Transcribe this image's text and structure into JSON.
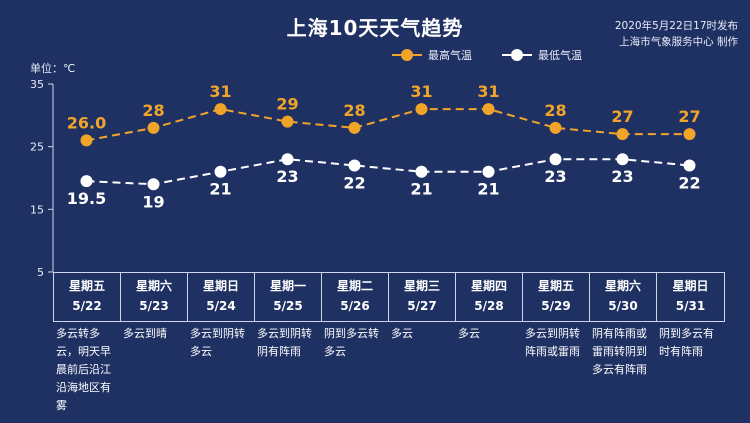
{
  "header": {
    "title": "上海10天天气趋势",
    "publish_time": "2020年5月22日17时发布",
    "producer": "上海市气象服务中心 制作"
  },
  "colors": {
    "background": "#1f3063",
    "high_series": "#f0a52a",
    "low_series": "#ffffff",
    "grid": "#cfd6ea"
  },
  "chart_data": {
    "type": "line",
    "unit_label": "单位：℃",
    "ylim": [
      5,
      35
    ],
    "yticks": [
      5,
      15,
      25,
      35
    ],
    "legend_position": "top-right",
    "categories": [
      "5/22",
      "5/23",
      "5/24",
      "5/25",
      "5/26",
      "5/27",
      "5/28",
      "5/29",
      "5/30",
      "5/31"
    ],
    "series": [
      {
        "name": "最高气温",
        "values": [
          26.0,
          28,
          31,
          29,
          28,
          31,
          31,
          28,
          27,
          27
        ],
        "labels": [
          "26.0",
          "28",
          "31",
          "29",
          "28",
          "31",
          "31",
          "28",
          "27",
          "27"
        ]
      },
      {
        "name": "最低气温",
        "values": [
          19.5,
          19,
          21,
          23,
          22,
          21,
          21,
          23,
          23,
          22
        ],
        "labels": [
          "19.5",
          "19",
          "21",
          "23",
          "22",
          "21",
          "21",
          "23",
          "23",
          "22"
        ]
      }
    ]
  },
  "days": [
    {
      "weekday": "星期五",
      "date": "5/22",
      "desc": "多云转多云，明天早晨前后沿江沿海地区有雾"
    },
    {
      "weekday": "星期六",
      "date": "5/23",
      "desc": "多云到晴"
    },
    {
      "weekday": "星期日",
      "date": "5/24",
      "desc": "多云到阴转多云"
    },
    {
      "weekday": "星期一",
      "date": "5/25",
      "desc": "多云到阴转阴有阵雨"
    },
    {
      "weekday": "星期二",
      "date": "5/26",
      "desc": "阴到多云转多云"
    },
    {
      "weekday": "星期三",
      "date": "5/27",
      "desc": "多云"
    },
    {
      "weekday": "星期四",
      "date": "5/28",
      "desc": "多云"
    },
    {
      "weekday": "星期五",
      "date": "5/29",
      "desc": "多云到阴转阵雨或雷雨"
    },
    {
      "weekday": "星期六",
      "date": "5/30",
      "desc": "阴有阵雨或雷雨转阴到多云有阵雨"
    },
    {
      "weekday": "星期日",
      "date": "5/31",
      "desc": "阴到多云有时有阵雨"
    }
  ]
}
